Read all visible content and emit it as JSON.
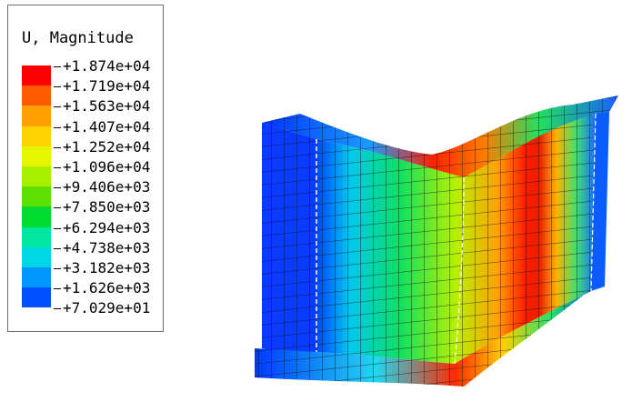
{
  "legend": {
    "title": "U, Magnitude",
    "values": [
      "+1.874e+04",
      "+1.719e+04",
      "+1.563e+04",
      "+1.407e+04",
      "+1.252e+04",
      "+1.096e+04",
      "+9.406e+03",
      "+7.850e+03",
      "+6.294e+03",
      "+4.738e+03",
      "+3.182e+03",
      "+1.626e+03",
      "+7.029e+01"
    ],
    "colors": [
      "#ff0000",
      "#ff5a00",
      "#ffa000",
      "#ffd200",
      "#e6f500",
      "#a8f000",
      "#5fe000",
      "#00dc32",
      "#00e8a0",
      "#00d6e6",
      "#0096ff",
      "#0050ff",
      "#0000ff"
    ]
  }
}
